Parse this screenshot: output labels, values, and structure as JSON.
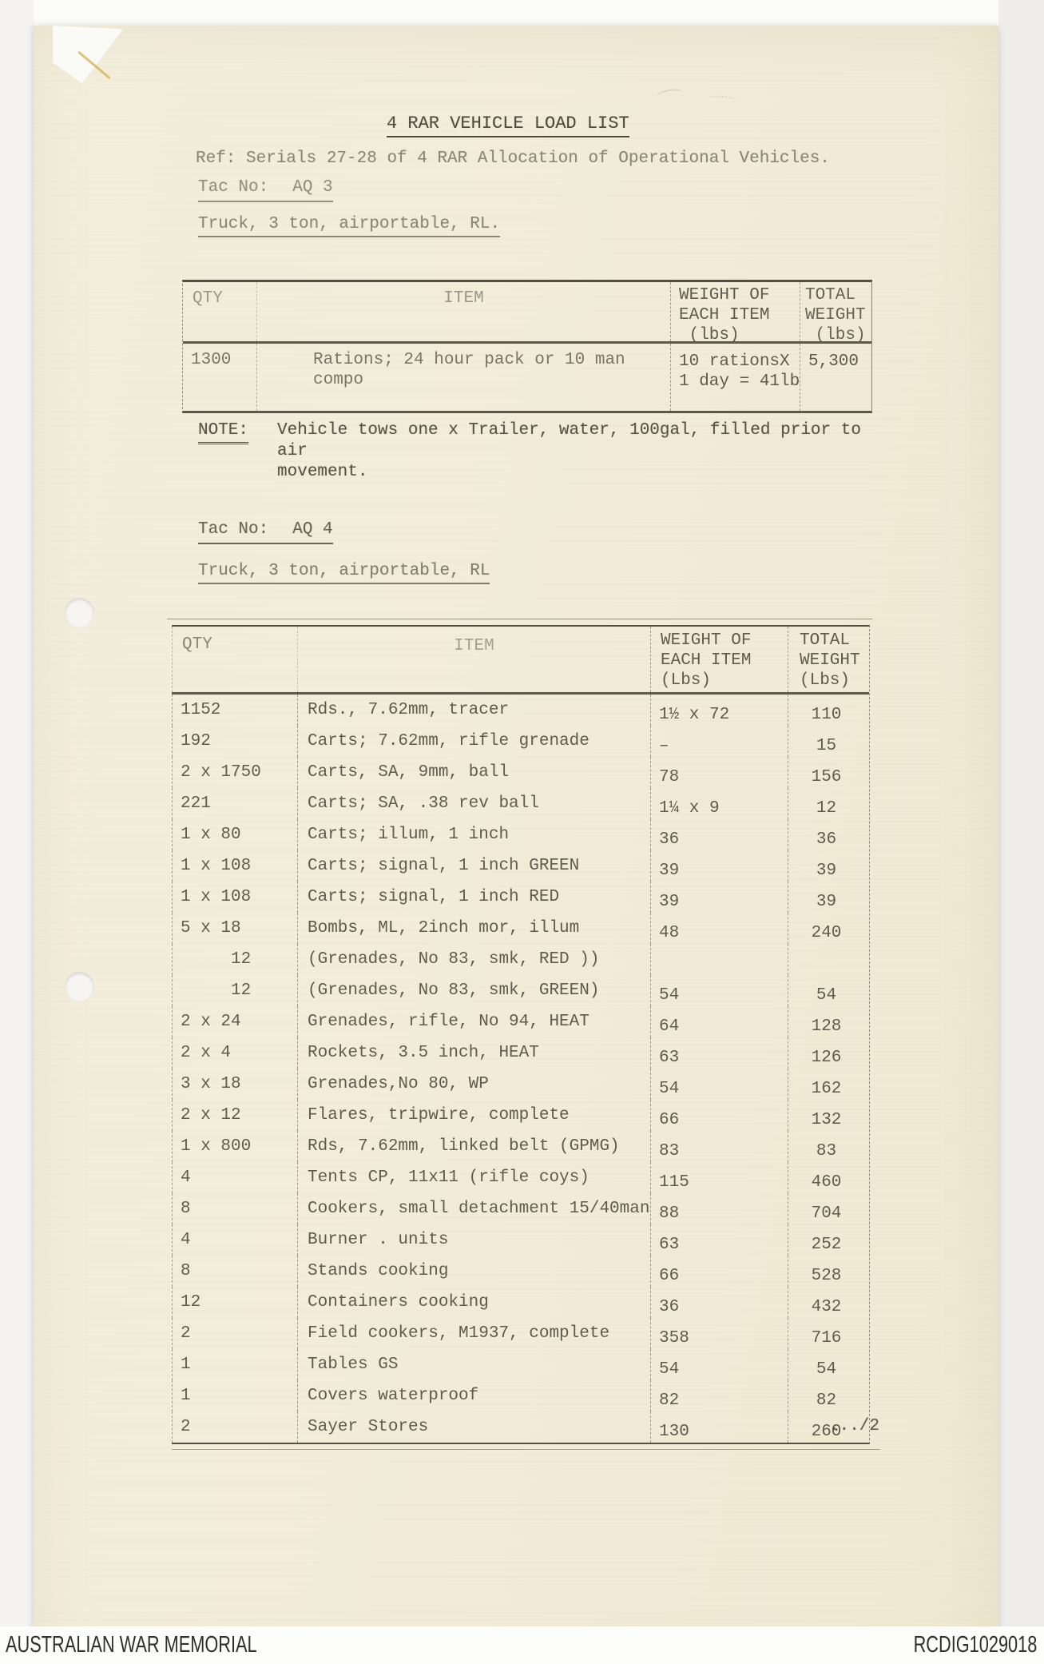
{
  "page": {
    "title": "4 RAR VEHICLE LOAD LIST",
    "ref_line": "Ref: Serials 27-28 of 4 RAR Allocation of Operational Vehicles.",
    "continuation_marker": ".../2"
  },
  "section1": {
    "tac_no_label": "Tac No:",
    "tac_no_value": "AQ 3",
    "vehicle_heading": "Truck, 3 ton, airportable, RL.",
    "table": {
      "headers": {
        "qty": "QTY",
        "item": "ITEM",
        "weight_each": "WEIGHT OF\nEACH ITEM\n (lbs)",
        "total": "TOTAL\nWEIGHT\n (lbs)"
      },
      "rows": [
        {
          "qty": "1300",
          "item": "Rations; 24 hour pack or 10 man\ncompo",
          "weight": "10 rationsX\n1 day = 41lbs",
          "total": "5,300"
        }
      ]
    },
    "note_label": "NOTE:",
    "note_text": "Vehicle tows one x Trailer, water, 100gal, filled prior to air\nmovement."
  },
  "section2": {
    "tac_no_label": "Tac No:",
    "tac_no_value": "AQ 4",
    "vehicle_heading": "Truck, 3 ton, airportable, RL",
    "table": {
      "headers": {
        "qty": "QTY",
        "item": "ITEM",
        "weight_each": "WEIGHT OF\nEACH ITEM\n(Lbs)",
        "total": "TOTAL\nWEIGHT\n(Lbs)"
      },
      "rows": [
        {
          "qty": "1152",
          "item": "Rds., 7.62mm, tracer",
          "weight": "1½ x 72",
          "total": "110"
        },
        {
          "qty": "192",
          "item": "Carts; 7.62mm, rifle grenade",
          "weight": "–",
          "total": "15"
        },
        {
          "qty": "2 x 1750",
          "item": "Carts, SA, 9mm, ball",
          "weight": "78",
          "total": "156"
        },
        {
          "qty": "221",
          "item": "Carts; SA, .38 rev ball",
          "weight": "1¼ x 9",
          "total": "12"
        },
        {
          "qty": "1 x 80",
          "item": "Carts; illum, 1 inch",
          "weight": "36",
          "total": "36"
        },
        {
          "qty": "1 x 108",
          "item": "Carts; signal, 1 inch GREEN",
          "weight": "39",
          "total": "39"
        },
        {
          "qty": "1 x 108",
          "item": "Carts; signal, 1 inch RED",
          "weight": "39",
          "total": "39"
        },
        {
          "qty": "5 x 18",
          "item": "Bombs, ML, 2inch mor, illum",
          "weight": "48",
          "total": "240"
        },
        {
          "qty": "     12",
          "item": "(Grenades, No 83, smk, RED ))",
          "weight": "",
          "total": ""
        },
        {
          "qty": "     12",
          "item": "(Grenades, No 83, smk, GREEN)",
          "weight": "54",
          "total": "54"
        },
        {
          "qty": "2 x 24",
          "item": "Grenades, rifle, No 94, HEAT",
          "weight": "64",
          "total": "128"
        },
        {
          "qty": "2 x 4",
          "item": "Rockets, 3.5 inch, HEAT",
          "weight": "63",
          "total": "126"
        },
        {
          "qty": "3 x 18",
          "item": "Grenades,No 80, WP",
          "weight": "54",
          "total": "162"
        },
        {
          "qty": "2 x 12",
          "item": "Flares, tripwire, complete",
          "weight": "66",
          "total": "132"
        },
        {
          "qty": "1 x 800",
          "item": "Rds, 7.62mm, linked belt (GPMG)",
          "weight": "83",
          "total": "83"
        },
        {
          "qty": "4",
          "item": "Tents CP, 11x11 (rifle coys)",
          "weight": "115",
          "total": "460"
        },
        {
          "qty": "8",
          "item": "Cookers, small detachment 15/40man",
          "weight": "88",
          "total": "704"
        },
        {
          "qty": "4",
          "item": "Burner . units",
          "weight": "63",
          "total": "252"
        },
        {
          "qty": "8",
          "item": "Stands cooking",
          "weight": "66",
          "total": "528"
        },
        {
          "qty": "12",
          "item": "Containers cooking",
          "weight": "36",
          "total": "432"
        },
        {
          "qty": "2",
          "item": "Field cookers, M1937, complete",
          "weight": "358",
          "total": "716"
        },
        {
          "qty": "1",
          "item": "Tables GS",
          "weight": "54",
          "total": "54"
        },
        {
          "qty": "1",
          "item": "Covers waterproof",
          "weight": "82",
          "total": "82"
        },
        {
          "qty": "2",
          "item": "Sayer Stores",
          "weight": "130",
          "total": "260"
        }
      ]
    }
  },
  "footer": {
    "left": "AUSTRALIAN WAR MEMORIAL",
    "right": "RCDIG1029018"
  }
}
